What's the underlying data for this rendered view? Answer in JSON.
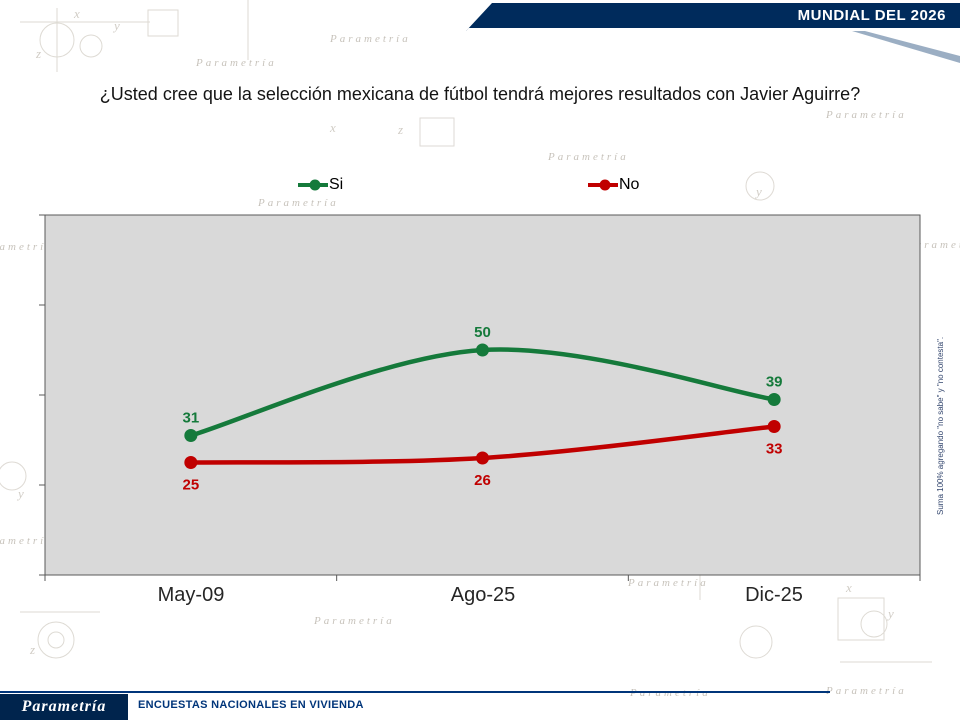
{
  "banner": {
    "label": "MUNDIAL DEL 2026"
  },
  "title": "¿Usted cree que la selección mexicana de fútbol tendrá mejores resultados con Javier Aguirre?",
  "side_note": "Suma 100% agregando \"no sabe\" y \"no contesta\".",
  "footer": {
    "logo": "Parametría",
    "text": "ENCUESTAS NACIONALES EN VIVIENDA"
  },
  "watermark_text": "Parametría",
  "doodle_letters": [
    "z",
    "y",
    "x",
    "z",
    "y",
    "x",
    "y",
    "z",
    "x",
    "y"
  ],
  "colors": {
    "brand_navy": "#002b5c",
    "footer_navy": "#00357a",
    "si_green": "#157a3b",
    "no_red": "#c00000",
    "plot_gray": "#d9d9d9"
  },
  "chart_data": {
    "type": "line",
    "title": "",
    "categories": [
      "May-09",
      "Ago-25",
      "Dic-25"
    ],
    "series": [
      {
        "name": "Si",
        "color": "#157a3b",
        "values": [
          31,
          50,
          39
        ],
        "label_side": "above"
      },
      {
        "name": "No",
        "color": "#c00000",
        "values": [
          25,
          26,
          33
        ],
        "label_side": "below"
      }
    ],
    "xlabel": "",
    "ylabel": "",
    "ylim": [
      0,
      80
    ],
    "y_tick_step": 20,
    "plot_bg": "#d9d9d9",
    "grid": false,
    "legend_position": "top",
    "smooth": true
  }
}
